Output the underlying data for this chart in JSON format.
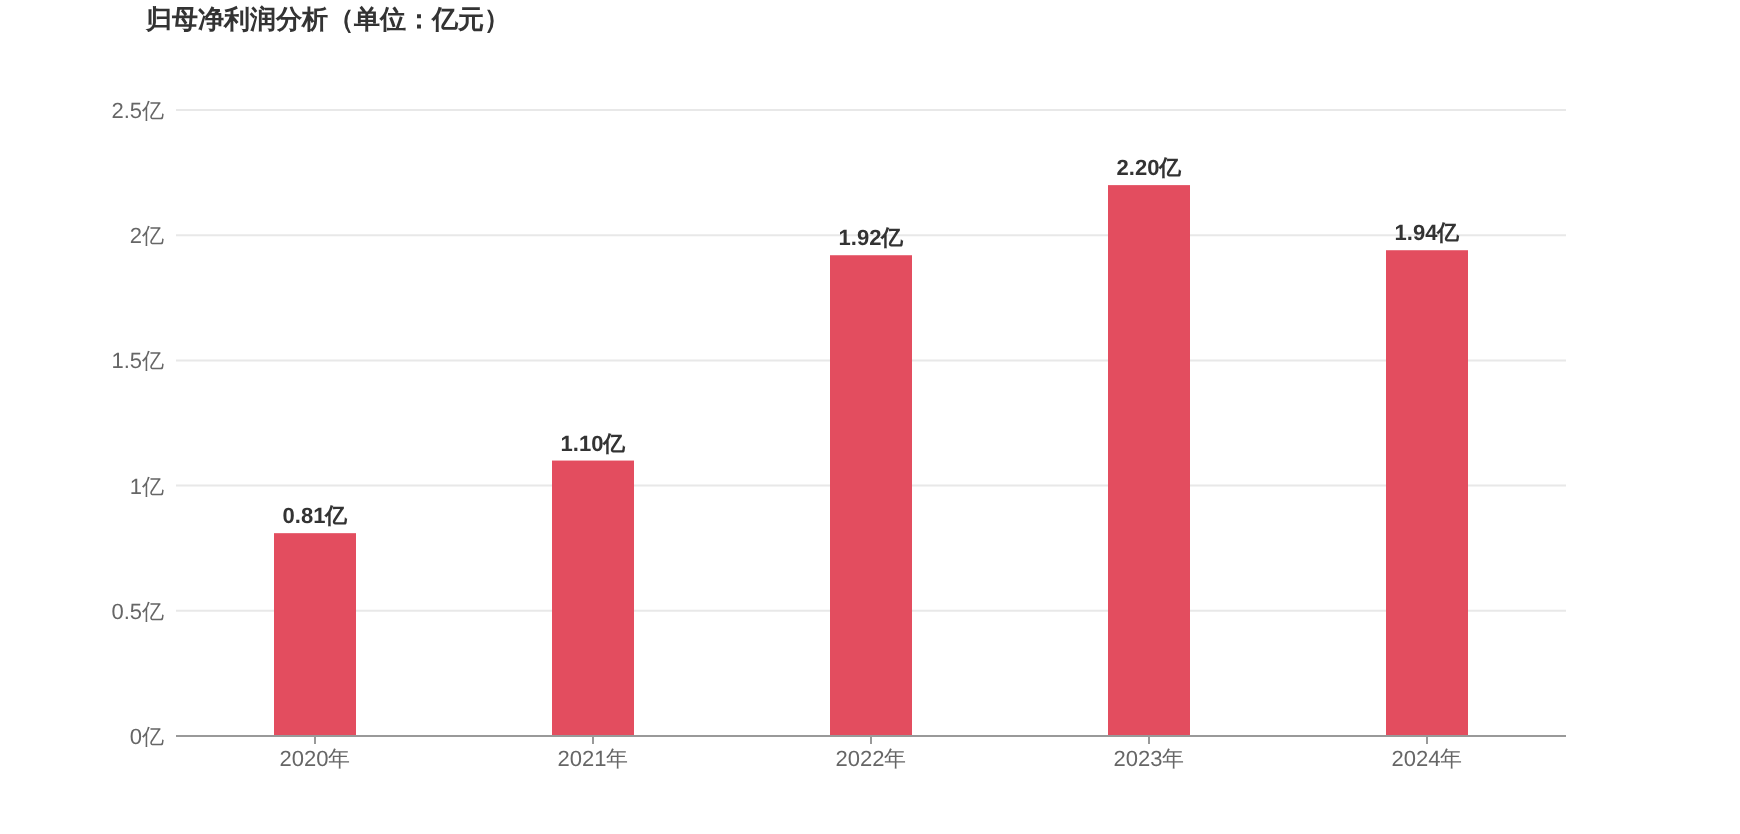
{
  "chart_data": {
    "type": "bar",
    "title": "归母净利润分析（单位：亿元）",
    "categories": [
      "2020年",
      "2021年",
      "2022年",
      "2023年",
      "2024年"
    ],
    "values": [
      0.81,
      1.1,
      1.92,
      2.2,
      1.94
    ],
    "value_labels": [
      "0.81亿",
      "1.10亿",
      "1.92亿",
      "2.20亿",
      "1.94亿"
    ],
    "color": "#e34d5f",
    "ylim": [
      0,
      2.5
    ],
    "yticks": [
      {
        "value": 0,
        "label": "0亿"
      },
      {
        "value": 0.5,
        "label": "0.5亿"
      },
      {
        "value": 1,
        "label": "1亿"
      },
      {
        "value": 1.5,
        "label": "1.5亿"
      },
      {
        "value": 2,
        "label": "2亿"
      },
      {
        "value": 2.5,
        "label": "2.5亿"
      }
    ],
    "grid": "y"
  }
}
